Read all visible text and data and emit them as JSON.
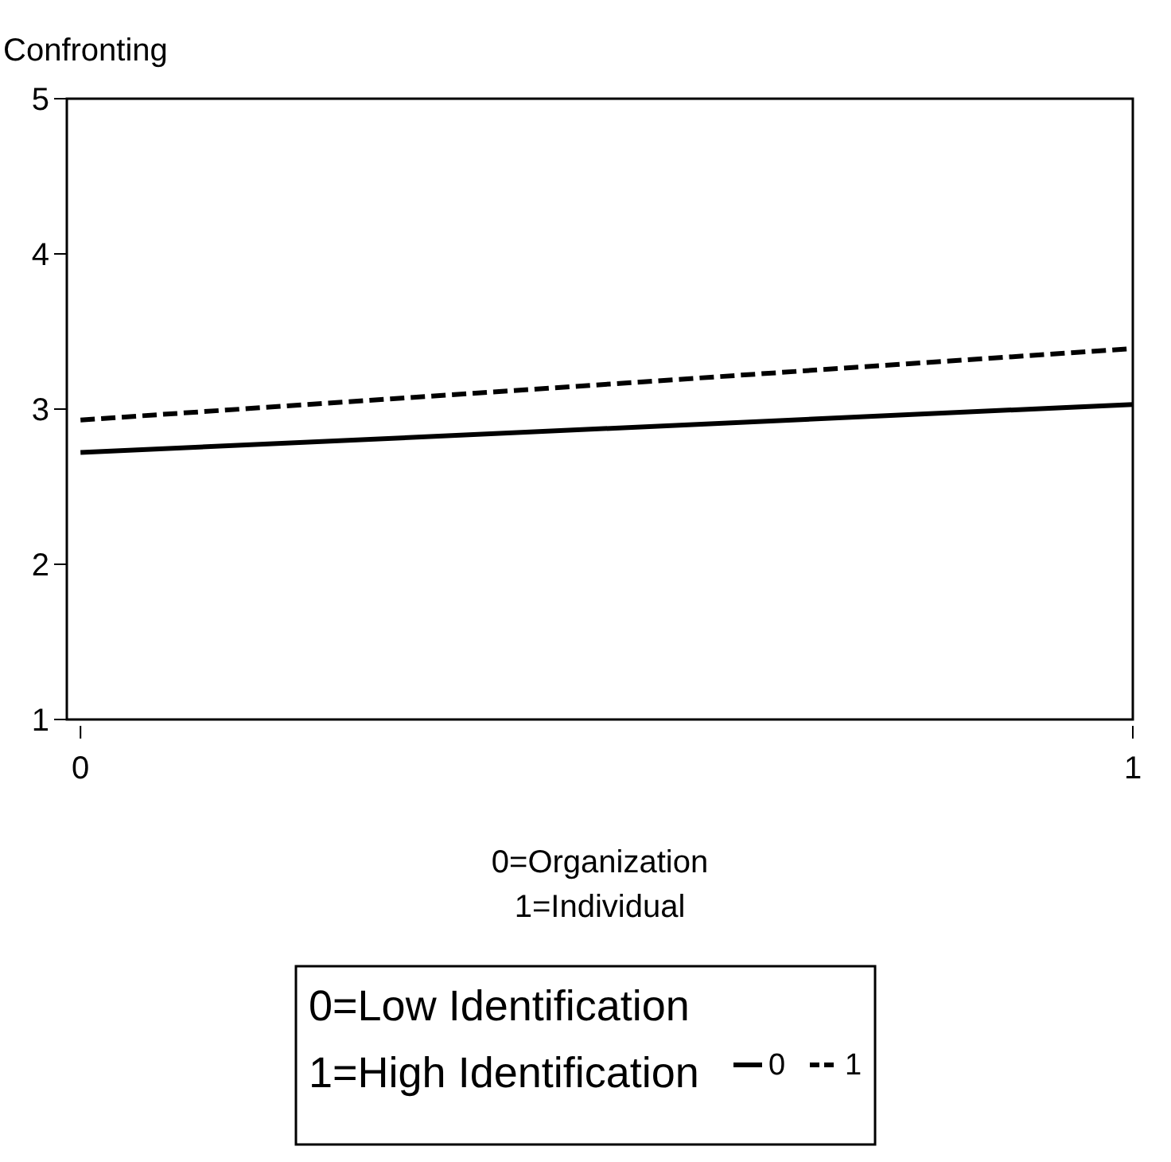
{
  "chart_data": {
    "type": "line",
    "ylabel": "Confronting",
    "xlabel": "0=Organization\n1=Individual",
    "legend_title": "0=Low Identification\n1=High Identification",
    "x": [
      0,
      1
    ],
    "series": [
      {
        "name": "0",
        "color": "#000000",
        "values": [
          2.72,
          3.03
        ],
        "line_style": "solid"
      },
      {
        "name": "1",
        "color": "#000000",
        "values": [
          2.93,
          3.39
        ],
        "line_style": "dashed"
      }
    ],
    "xlim": [
      -0.013,
      1
    ],
    "xticks": [
      0,
      1
    ],
    "ylim": [
      1,
      5
    ],
    "yticks": [
      1,
      2,
      3,
      4,
      5
    ],
    "grid": false,
    "legend": "bottom",
    "marker": "none"
  }
}
